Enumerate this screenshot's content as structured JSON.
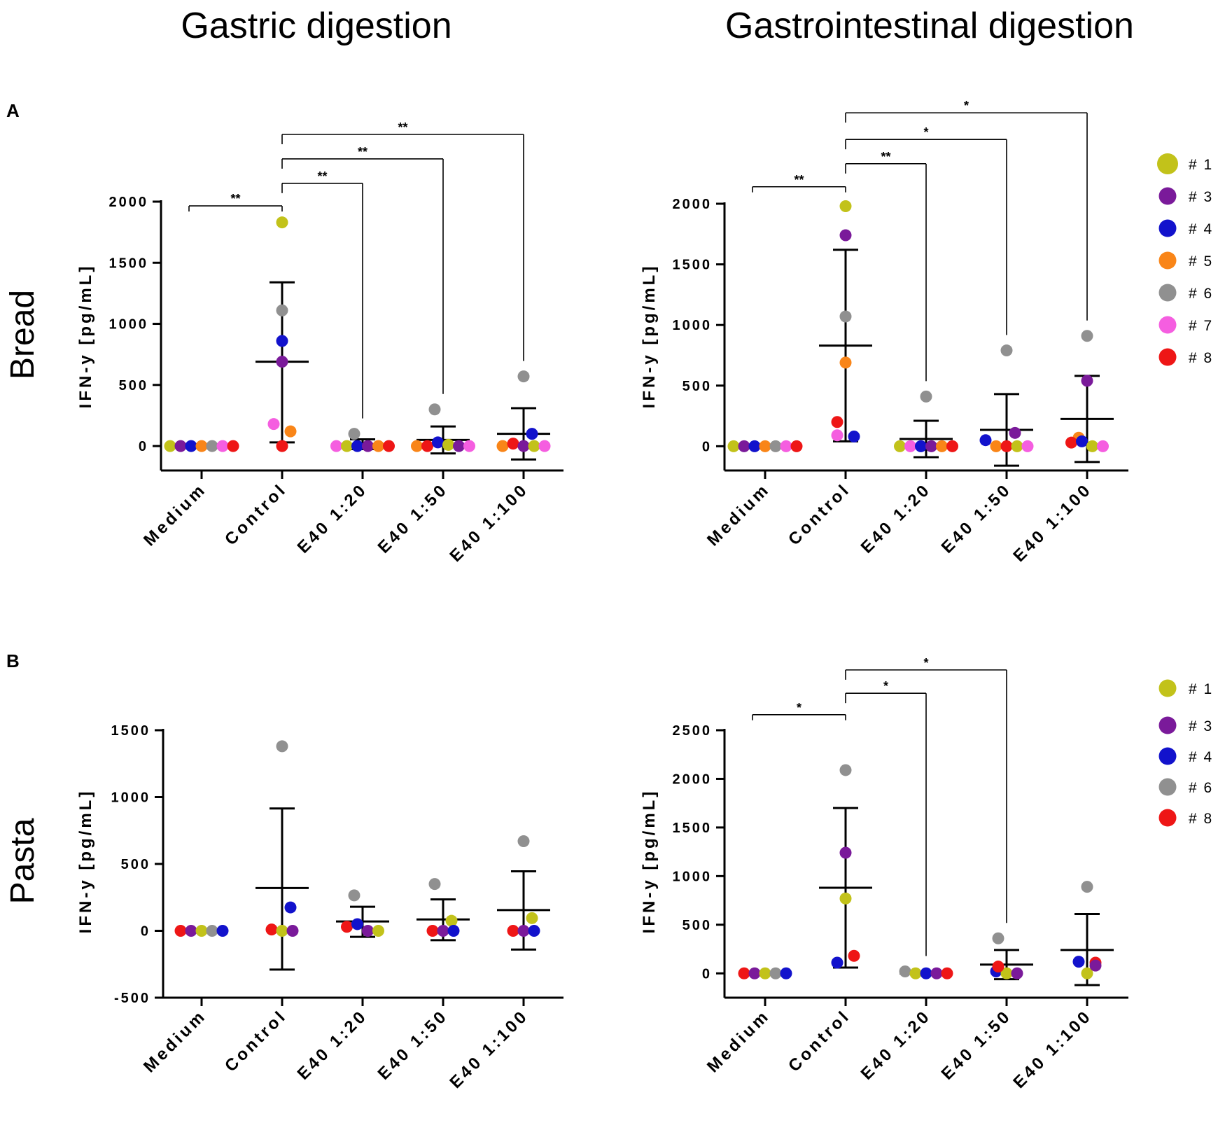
{
  "columns": [
    "Gastric digestion",
    "Gastrointestinal digestion"
  ],
  "rows": [
    {
      "letter": "A",
      "title": "Bread"
    },
    {
      "letter": "B",
      "title": "Pasta"
    }
  ],
  "colors": {
    "#1": "#c2c21a",
    "#3": "#7a1a9a",
    "#4": "#1212cc",
    "#5": "#f98518",
    "#6": "#909090",
    "#7": "#f55ee0",
    "#8": "#ee1616"
  },
  "legends": [
    {
      "entries": [
        "# 1",
        "# 3",
        "# 4",
        "# 5",
        "# 6",
        "# 7",
        "# 8"
      ]
    },
    {
      "entries": [
        "# 1",
        "# 3",
        "# 4",
        "# 6",
        "# 8"
      ]
    }
  ],
  "chart_data": [
    {
      "type": "scatter",
      "panel": "A",
      "title": "Gastric digestion",
      "row": "Bread",
      "ylabel": "IFN-y [pg/mL]",
      "ylim": [
        -200,
        2000
      ],
      "yticks": [
        0,
        500,
        1000,
        1500,
        2000
      ],
      "categories": [
        "Medium",
        "Control",
        "E40 1:20",
        "E40 1:50",
        "E40 1:100"
      ],
      "mean": [
        0,
        690,
        15,
        50,
        100
      ],
      "sd_upper": [
        0,
        1340,
        55,
        160,
        310
      ],
      "sd_lower": [
        0,
        30,
        -25,
        -60,
        -110
      ],
      "points": [
        [
          {
            "d": "#1",
            "v": 0
          },
          {
            "d": "#3",
            "v": 0
          },
          {
            "d": "#4",
            "v": 0
          },
          {
            "d": "#5",
            "v": 0
          },
          {
            "d": "#6",
            "v": 0
          },
          {
            "d": "#7",
            "v": 0
          },
          {
            "d": "#8",
            "v": 0
          }
        ],
        [
          {
            "d": "#1",
            "v": 1830
          },
          {
            "d": "#6",
            "v": 1110
          },
          {
            "d": "#4",
            "v": 860
          },
          {
            "d": "#3",
            "v": 690
          },
          {
            "d": "#7",
            "v": 180
          },
          {
            "d": "#5",
            "v": 120
          },
          {
            "d": "#8",
            "v": 0
          }
        ],
        [
          {
            "d": "#6",
            "v": 100
          },
          {
            "d": "#7",
            "v": 0
          },
          {
            "d": "#1",
            "v": 0
          },
          {
            "d": "#4",
            "v": 0
          },
          {
            "d": "#3",
            "v": 0
          },
          {
            "d": "#5",
            "v": 0
          },
          {
            "d": "#8",
            "v": 0
          }
        ],
        [
          {
            "d": "#6",
            "v": 300
          },
          {
            "d": "#5",
            "v": 0
          },
          {
            "d": "#8",
            "v": 0
          },
          {
            "d": "#4",
            "v": 30
          },
          {
            "d": "#1",
            "v": 10
          },
          {
            "d": "#3",
            "v": 0
          },
          {
            "d": "#7",
            "v": 0
          }
        ],
        [
          {
            "d": "#6",
            "v": 570
          },
          {
            "d": "#4",
            "v": 100
          },
          {
            "d": "#5",
            "v": 0
          },
          {
            "d": "#8",
            "v": 20
          },
          {
            "d": "#3",
            "v": 0
          },
          {
            "d": "#1",
            "v": 0
          },
          {
            "d": "#7",
            "v": 0
          }
        ]
      ],
      "significance": [
        {
          "from": 0,
          "to": 1,
          "label": "**",
          "y": 1965
        },
        {
          "from": 1,
          "to": 2,
          "label": "**",
          "y": 2150
        },
        {
          "from": 1,
          "to": 3,
          "label": "**",
          "y": 2350
        },
        {
          "from": 1,
          "to": 4,
          "label": "**",
          "y": 2550
        }
      ]
    },
    {
      "type": "scatter",
      "panel": "A",
      "title": "Gastrointestinal digestion",
      "row": "Bread",
      "ylabel": "IFN-y [pg/mL]",
      "ylim": [
        -200,
        2000
      ],
      "yticks": [
        0,
        500,
        1000,
        1500,
        2000
      ],
      "categories": [
        "Medium",
        "Control",
        "E40 1:20",
        "E40 1:50",
        "E40 1:100"
      ],
      "mean": [
        0,
        830,
        60,
        135,
        225
      ],
      "sd_upper": [
        0,
        1620,
        210,
        430,
        580
      ],
      "sd_lower": [
        0,
        40,
        -90,
        -160,
        -130
      ],
      "points": [
        [
          {
            "d": "#1",
            "v": 0
          },
          {
            "d": "#3",
            "v": 0
          },
          {
            "d": "#4",
            "v": 0
          },
          {
            "d": "#5",
            "v": 0
          },
          {
            "d": "#6",
            "v": 0
          },
          {
            "d": "#7",
            "v": 0
          },
          {
            "d": "#8",
            "v": 0
          }
        ],
        [
          {
            "d": "#1",
            "v": 1980
          },
          {
            "d": "#3",
            "v": 1740
          },
          {
            "d": "#6",
            "v": 1070
          },
          {
            "d": "#5",
            "v": 690
          },
          {
            "d": "#8",
            "v": 200
          },
          {
            "d": "#4",
            "v": 80
          },
          {
            "d": "#7",
            "v": 90
          }
        ],
        [
          {
            "d": "#6",
            "v": 410
          },
          {
            "d": "#1",
            "v": 0
          },
          {
            "d": "#7",
            "v": 0
          },
          {
            "d": "#4",
            "v": 0
          },
          {
            "d": "#3",
            "v": 0
          },
          {
            "d": "#5",
            "v": 0
          },
          {
            "d": "#8",
            "v": 0
          }
        ],
        [
          {
            "d": "#6",
            "v": 790
          },
          {
            "d": "#3",
            "v": 110
          },
          {
            "d": "#4",
            "v": 50
          },
          {
            "d": "#5",
            "v": 0
          },
          {
            "d": "#8",
            "v": 0
          },
          {
            "d": "#1",
            "v": 0
          },
          {
            "d": "#7",
            "v": 0
          }
        ],
        [
          {
            "d": "#6",
            "v": 910
          },
          {
            "d": "#3",
            "v": 540
          },
          {
            "d": "#5",
            "v": 70
          },
          {
            "d": "#8",
            "v": 30
          },
          {
            "d": "#4",
            "v": 40
          },
          {
            "d": "#1",
            "v": 0
          },
          {
            "d": "#7",
            "v": 0
          }
        ]
      ],
      "significance": [
        {
          "from": 0,
          "to": 1,
          "label": "**",
          "y": 2140
        },
        {
          "from": 1,
          "to": 2,
          "label": "**",
          "y": 2330
        },
        {
          "from": 1,
          "to": 3,
          "label": "*",
          "y": 2530
        },
        {
          "from": 1,
          "to": 4,
          "label": "*",
          "y": 2750
        }
      ]
    },
    {
      "type": "scatter",
      "panel": "B",
      "title": "Gastric digestion",
      "row": "Pasta",
      "ylabel": "IFN-y [pg/mL]",
      "ylim": [
        -500,
        1500
      ],
      "yticks": [
        -500,
        0,
        500,
        1000,
        1500
      ],
      "categories": [
        "Medium",
        "Control",
        "E40 1:20",
        "E40 1:50",
        "E40 1:100"
      ],
      "mean": [
        0,
        320,
        70,
        85,
        155
      ],
      "sd_upper": [
        0,
        915,
        180,
        235,
        445
      ],
      "sd_lower": [
        0,
        -290,
        -45,
        -70,
        -140
      ],
      "points": [
        [
          {
            "d": "#8",
            "v": 0
          },
          {
            "d": "#3",
            "v": 0
          },
          {
            "d": "#1",
            "v": 0
          },
          {
            "d": "#6",
            "v": 0
          },
          {
            "d": "#4",
            "v": 0
          }
        ],
        [
          {
            "d": "#6",
            "v": 1380
          },
          {
            "d": "#4",
            "v": 175
          },
          {
            "d": "#8",
            "v": 10
          },
          {
            "d": "#1",
            "v": 0
          },
          {
            "d": "#3",
            "v": 0
          }
        ],
        [
          {
            "d": "#6",
            "v": 265
          },
          {
            "d": "#8",
            "v": 30
          },
          {
            "d": "#4",
            "v": 50
          },
          {
            "d": "#3",
            "v": 0
          },
          {
            "d": "#1",
            "v": 0
          }
        ],
        [
          {
            "d": "#6",
            "v": 350
          },
          {
            "d": "#1",
            "v": 75
          },
          {
            "d": "#8",
            "v": 0
          },
          {
            "d": "#3",
            "v": 0
          },
          {
            "d": "#4",
            "v": 0
          }
        ],
        [
          {
            "d": "#6",
            "v": 670
          },
          {
            "d": "#1",
            "v": 95
          },
          {
            "d": "#8",
            "v": 0
          },
          {
            "d": "#3",
            "v": 0
          },
          {
            "d": "#4",
            "v": 0
          }
        ]
      ],
      "significance": []
    },
    {
      "type": "scatter",
      "panel": "B",
      "title": "Gastrointestinal digestion",
      "row": "Pasta",
      "ylabel": "IFN-y [pg/mL]",
      "ylim": [
        -250,
        2500
      ],
      "yticks": [
        0,
        500,
        1000,
        1500,
        2000,
        2500
      ],
      "categories": [
        "Medium",
        "Control",
        "E40 1:20",
        "E40 1:50",
        "E40 1:100"
      ],
      "mean": [
        0,
        880,
        0,
        90,
        240
      ],
      "sd_upper": [
        0,
        1700,
        0,
        240,
        610
      ],
      "sd_lower": [
        0,
        60,
        0,
        -60,
        -120
      ],
      "points": [
        [
          {
            "d": "#8",
            "v": 0
          },
          {
            "d": "#3",
            "v": 0
          },
          {
            "d": "#1",
            "v": 0
          },
          {
            "d": "#6",
            "v": 0
          },
          {
            "d": "#4",
            "v": 0
          }
        ],
        [
          {
            "d": "#6",
            "v": 2090
          },
          {
            "d": "#3",
            "v": 1240
          },
          {
            "d": "#1",
            "v": 770
          },
          {
            "d": "#8",
            "v": 180
          },
          {
            "d": "#4",
            "v": 110
          }
        ],
        [
          {
            "d": "#6",
            "v": 20
          },
          {
            "d": "#1",
            "v": 0
          },
          {
            "d": "#4",
            "v": 0
          },
          {
            "d": "#3",
            "v": 0
          },
          {
            "d": "#8",
            "v": 0
          }
        ],
        [
          {
            "d": "#6",
            "v": 360
          },
          {
            "d": "#4",
            "v": 20
          },
          {
            "d": "#1",
            "v": 0
          },
          {
            "d": "#3",
            "v": 0
          },
          {
            "d": "#8",
            "v": 70
          }
        ],
        [
          {
            "d": "#6",
            "v": 890
          },
          {
            "d": "#8",
            "v": 110
          },
          {
            "d": "#1",
            "v": 0
          },
          {
            "d": "#3",
            "v": 80
          },
          {
            "d": "#4",
            "v": 120
          }
        ]
      ],
      "significance": [
        {
          "from": 0,
          "to": 1,
          "label": "*",
          "y": 2660
        },
        {
          "from": 1,
          "to": 2,
          "label": "*",
          "y": 2880
        },
        {
          "from": 1,
          "to": 3,
          "label": "*",
          "y": 3120
        }
      ]
    }
  ]
}
